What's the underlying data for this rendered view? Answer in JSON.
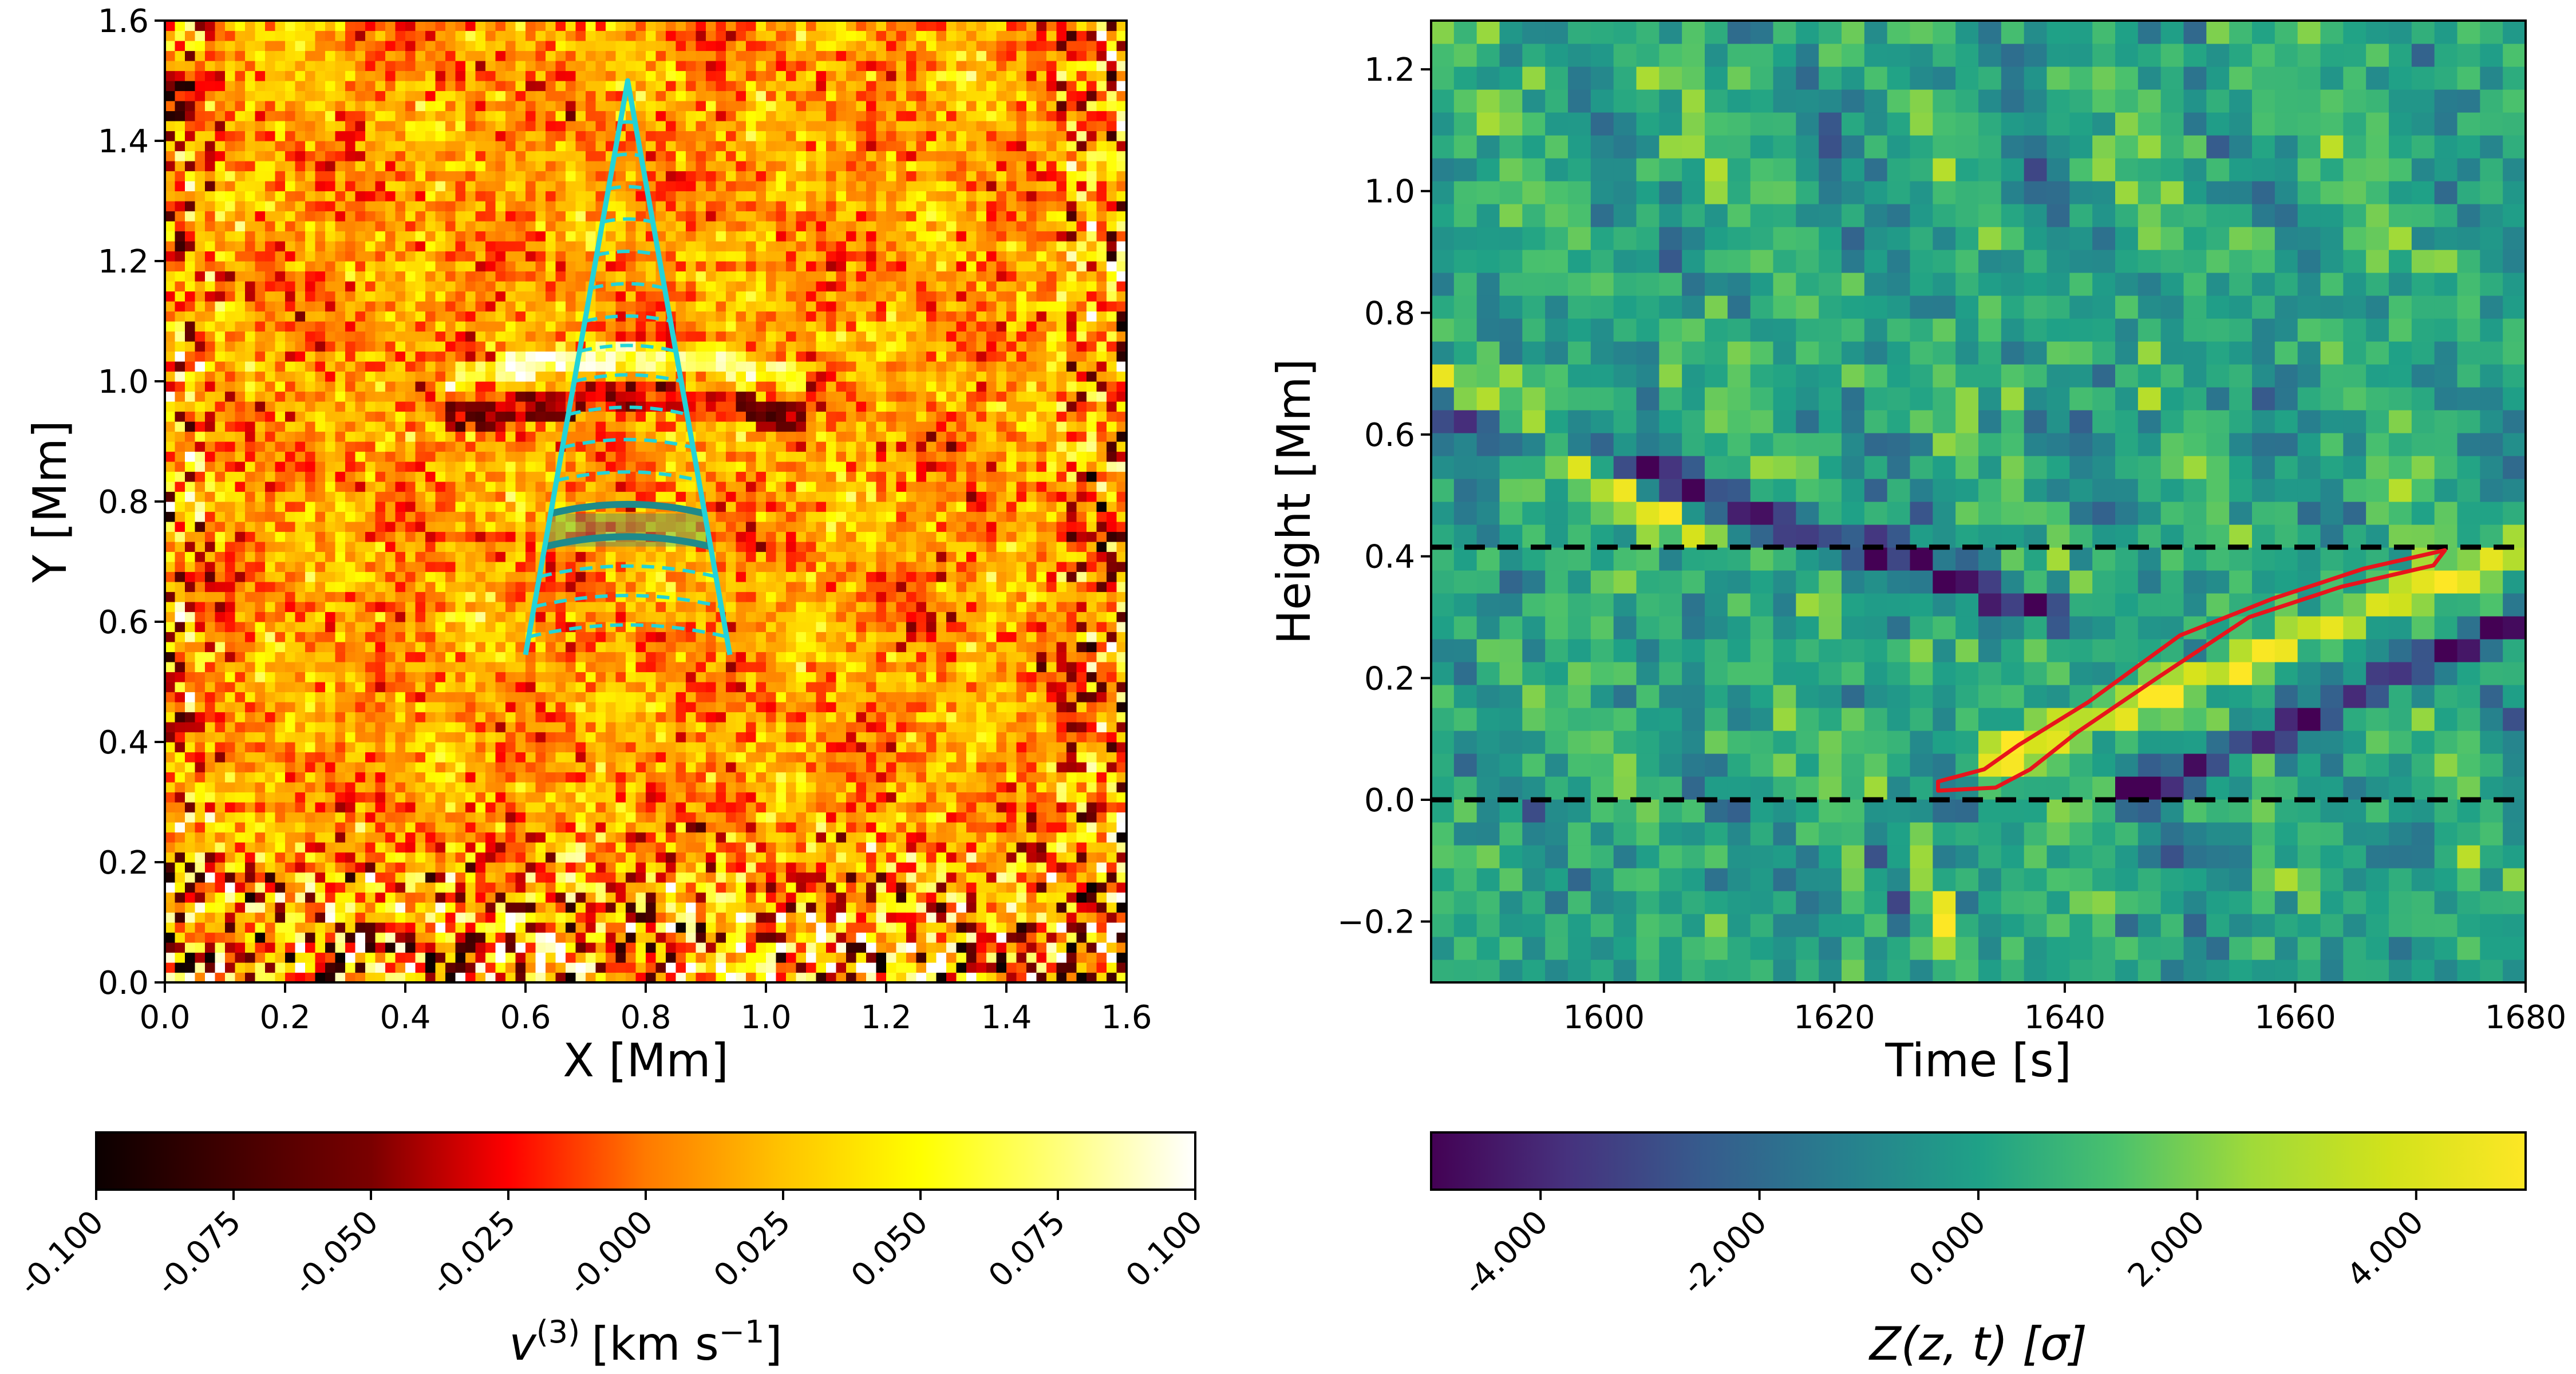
{
  "chart_data": [
    {
      "type": "heatmap",
      "title": "",
      "xlabel": "X [Mm]",
      "ylabel": "Y [Mm]",
      "xlim": [
        0.0,
        1.6
      ],
      "ylim": [
        0.0,
        1.6
      ],
      "x_ticks": [
        "0.0",
        "0.2",
        "0.4",
        "0.6",
        "0.8",
        "1.0",
        "1.2",
        "1.4",
        "1.6"
      ],
      "y_ticks": [
        "0.0",
        "0.2",
        "0.4",
        "0.6",
        "0.8",
        "1.0",
        "1.2",
        "1.4",
        "1.6"
      ],
      "colormap": "hot",
      "color_range": [
        -0.1,
        0.1
      ],
      "colorbar_ticks": [
        "-0.100",
        "-0.075",
        "-0.050",
        "-0.025",
        "-0.000",
        "0.025",
        "0.050",
        "0.075",
        "0.100"
      ],
      "colorbar_label": "v(3) [km s−1]",
      "colorbar_label_parts": {
        "base": "v",
        "superscript": "(3)",
        "unit": "[km s",
        "unit_superscript": "−1",
        "unit_end": "]"
      },
      "overlay": {
        "shape": "wedge",
        "color": "#22d3d8",
        "highlight_color": "#1f8a8a",
        "apex": [
          0.77,
          1.5
        ],
        "base_left": [
          0.6,
          0.545
        ],
        "base_right": [
          0.94,
          0.545
        ],
        "dashed_arc_levels": [
          0.575,
          0.625,
          0.675,
          0.725,
          0.78,
          0.835,
          0.89,
          0.945,
          1.0,
          1.05,
          1.1,
          1.155,
          1.21,
          1.265,
          1.32,
          1.375,
          1.43
        ],
        "highlight_band": [
          0.725,
          0.78
        ]
      }
    },
    {
      "type": "heatmap",
      "title": "",
      "xlabel": "Time [s]",
      "ylabel": "Height [Mm]",
      "xlim": [
        1585,
        1680
      ],
      "ylim": [
        -0.3,
        1.28
      ],
      "x_ticks": [
        "1600",
        "1620",
        "1640",
        "1660",
        "1680"
      ],
      "y_ticks": [
        "−0.2",
        "0.0",
        "0.2",
        "0.4",
        "0.6",
        "0.8",
        "1.0",
        "1.2"
      ],
      "colormap": "viridis",
      "color_range": [
        -5,
        5
      ],
      "colorbar_ticks": [
        "-4.000",
        "-2.000",
        "0.000",
        "2.000",
        "4.000"
      ],
      "colorbar_label": "Z(z, t) [σ]",
      "reference_lines": [
        0.0,
        0.415
      ],
      "reference_line_color": "#000000",
      "detection_contour_color": "#e8141c",
      "detection_contour": [
        [
          1629,
          0.015
        ],
        [
          1629,
          0.03
        ],
        [
          1633,
          0.05
        ],
        [
          1636,
          0.09
        ],
        [
          1642,
          0.16
        ],
        [
          1650,
          0.27
        ],
        [
          1658,
          0.33
        ],
        [
          1666,
          0.38
        ],
        [
          1673,
          0.41
        ],
        [
          1672,
          0.385
        ],
        [
          1664,
          0.35
        ],
        [
          1656,
          0.3
        ],
        [
          1648,
          0.2
        ],
        [
          1641,
          0.11
        ],
        [
          1637,
          0.05
        ],
        [
          1634,
          0.02
        ]
      ],
      "feature_ridges": [
        {
          "from": [
            1585,
            0.7
          ],
          "to": [
            1610,
            0.42
          ],
          "sign": "positive"
        },
        {
          "from": [
            1585,
            0.65
          ],
          "to": [
            1640,
            0.3
          ],
          "sign": "negative"
        },
        {
          "from": [
            1632,
            0.05
          ],
          "to": [
            1680,
            0.42
          ],
          "sign": "positive"
        },
        {
          "from": [
            1645,
            0.0
          ],
          "to": [
            1680,
            0.3
          ],
          "sign": "negative"
        },
        {
          "from": [
            1627,
            -0.05
          ],
          "to": [
            1631,
            -0.3
          ],
          "sign": "positive"
        },
        {
          "from": [
            1622,
            0.0
          ],
          "to": [
            1626,
            -0.2
          ],
          "sign": "negative"
        }
      ]
    }
  ]
}
